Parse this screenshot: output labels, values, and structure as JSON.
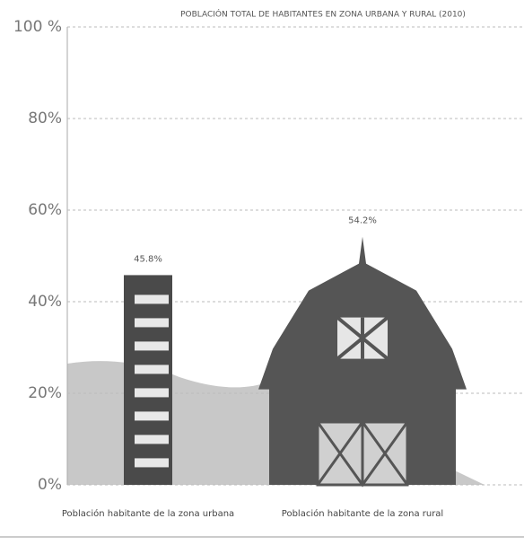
{
  "chart_data": {
    "type": "pictograph",
    "title": "POBLACIÓN TOTAL DE HABITANTES EN ZONA URBANA Y RURAL (2010)",
    "categories": [
      "Población habitante de la zona urbana",
      "Población habitante de la zona rural"
    ],
    "values": [
      45.8,
      54.2
    ],
    "value_labels": [
      "45.8%",
      "54.2%"
    ],
    "colors": [
      "#4a4a4a",
      "#555555"
    ],
    "ylim": [
      0,
      100
    ],
    "yticks": [
      {
        "value": 0,
        "label": "0%"
      },
      {
        "value": 20,
        "label": "20%"
      },
      {
        "value": 40,
        "label": "40%"
      },
      {
        "value": 60,
        "label": "60%"
      },
      {
        "value": 80,
        "label": "80%"
      },
      {
        "value": 100,
        "label": "100 %"
      }
    ],
    "grid": true
  }
}
